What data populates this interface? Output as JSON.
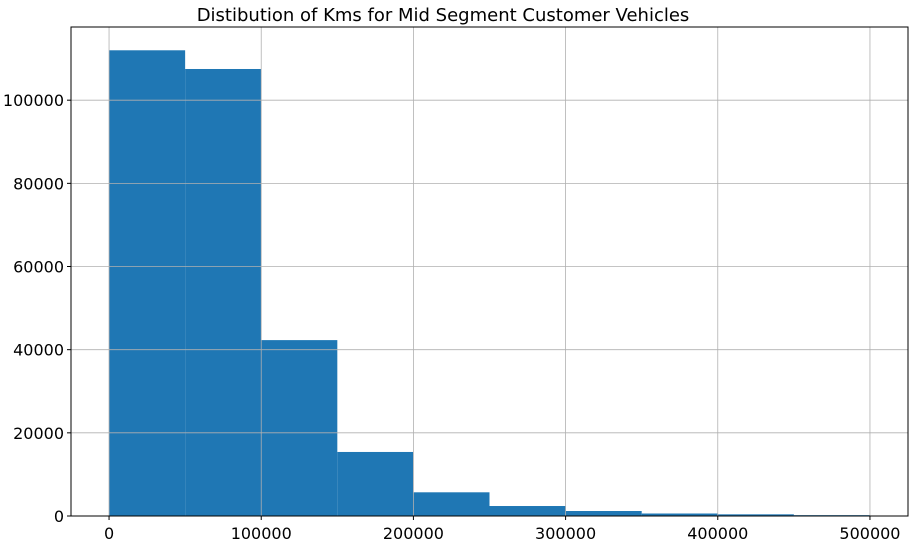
{
  "chart_data": {
    "type": "bar",
    "title": "Distibution of Kms for Mid Segment Customer Vehicles",
    "xlabel": "",
    "ylabel": "",
    "bin_edges": [
      0,
      50000,
      100000,
      150000,
      200000,
      250000,
      300000,
      350000,
      400000,
      450000,
      500000
    ],
    "values": [
      112000,
      107500,
      42300,
      15400,
      5700,
      2400,
      1200,
      600,
      400,
      200
    ],
    "xlim": [
      -25000,
      525000
    ],
    "ylim": [
      0,
      117600
    ],
    "x_ticks": [
      0,
      100000,
      200000,
      300000,
      400000,
      500000
    ],
    "x_tick_labels": [
      "0",
      "100000",
      "200000",
      "300000",
      "400000",
      "500000"
    ],
    "y_ticks": [
      0,
      20000,
      40000,
      60000,
      80000,
      100000
    ],
    "y_tick_labels": [
      "0",
      "20000",
      "40000",
      "60000",
      "80000",
      "100000"
    ],
    "grid": true,
    "bar_color": "#1f77b4",
    "grid_color": "#b0b0b0"
  }
}
